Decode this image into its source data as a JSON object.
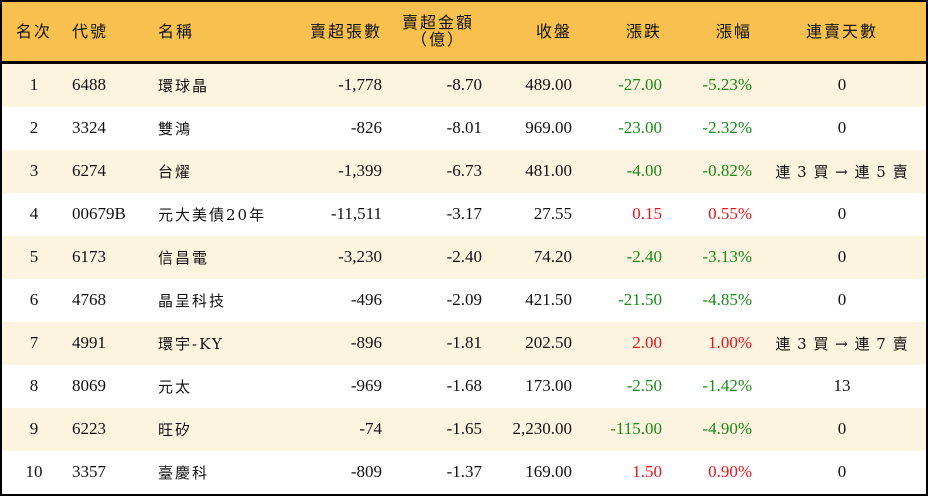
{
  "colors": {
    "header_bg": "#f8c04f",
    "odd_row_bg": "#fdf4df",
    "even_row_bg": "#ffffff",
    "up": "#e8141c",
    "down": "#1a8a1a"
  },
  "table": {
    "headers": {
      "rank": "名次",
      "code": "代號",
      "name": "名稱",
      "net_sell_lots": "賣超張數",
      "net_sell_amount_line1": "賣超金額",
      "net_sell_amount_line2": "（億）",
      "close": "收盤",
      "change": "漲跌",
      "change_pct": "漲幅",
      "streak": "連賣天數"
    },
    "rows": [
      {
        "rank": "1",
        "code": "6488",
        "name": "環球晶",
        "lots": "-1,778",
        "amount": "-8.70",
        "close": "489.00",
        "change": "-27.00",
        "pct": "-5.23%",
        "dir": "down",
        "streak": "0"
      },
      {
        "rank": "2",
        "code": "3324",
        "name": "雙鴻",
        "lots": "-826",
        "amount": "-8.01",
        "close": "969.00",
        "change": "-23.00",
        "pct": "-2.32%",
        "dir": "down",
        "streak": "0"
      },
      {
        "rank": "3",
        "code": "6274",
        "name": "台燿",
        "lots": "-1,399",
        "amount": "-6.73",
        "close": "481.00",
        "change": "-4.00",
        "pct": "-0.82%",
        "dir": "down",
        "streak": "連 3 買 → 連 5 賣"
      },
      {
        "rank": "4",
        "code": "00679B",
        "name": "元大美債20年",
        "lots": "-11,511",
        "amount": "-3.17",
        "close": "27.55",
        "change": "0.15",
        "pct": "0.55%",
        "dir": "up",
        "streak": "0"
      },
      {
        "rank": "5",
        "code": "6173",
        "name": "信昌電",
        "lots": "-3,230",
        "amount": "-2.40",
        "close": "74.20",
        "change": "-2.40",
        "pct": "-3.13%",
        "dir": "down",
        "streak": "0"
      },
      {
        "rank": "6",
        "code": "4768",
        "name": "晶呈科技",
        "lots": "-496",
        "amount": "-2.09",
        "close": "421.50",
        "change": "-21.50",
        "pct": "-4.85%",
        "dir": "down",
        "streak": "0"
      },
      {
        "rank": "7",
        "code": "4991",
        "name": "環宇-KY",
        "lots": "-896",
        "amount": "-1.81",
        "close": "202.50",
        "change": "2.00",
        "pct": "1.00%",
        "dir": "up",
        "streak": "連 3 買 → 連 7 賣"
      },
      {
        "rank": "8",
        "code": "8069",
        "name": "元太",
        "lots": "-969",
        "amount": "-1.68",
        "close": "173.00",
        "change": "-2.50",
        "pct": "-1.42%",
        "dir": "down",
        "streak": "13"
      },
      {
        "rank": "9",
        "code": "6223",
        "name": "旺矽",
        "lots": "-74",
        "amount": "-1.65",
        "close": "2,230.00",
        "change": "-115.00",
        "pct": "-4.90%",
        "dir": "down",
        "streak": "0"
      },
      {
        "rank": "10",
        "code": "3357",
        "name": "臺慶科",
        "lots": "-809",
        "amount": "-1.37",
        "close": "169.00",
        "change": "1.50",
        "pct": "0.90%",
        "dir": "up",
        "streak": "0"
      }
    ]
  }
}
